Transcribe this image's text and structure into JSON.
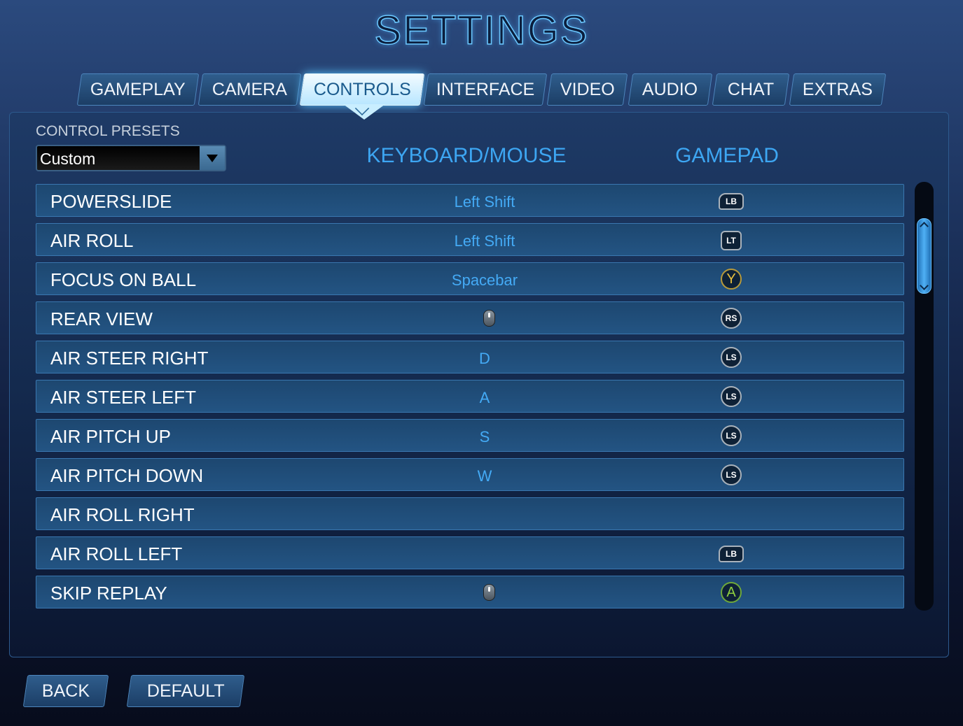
{
  "title": "SETTINGS",
  "tabs": [
    {
      "label": "GAMEPLAY"
    },
    {
      "label": "CAMERA"
    },
    {
      "label": "CONTROLS",
      "active": true
    },
    {
      "label": "INTERFACE"
    },
    {
      "label": "VIDEO"
    },
    {
      "label": "AUDIO"
    },
    {
      "label": "CHAT"
    },
    {
      "label": "EXTRAS"
    }
  ],
  "presets": {
    "label": "CONTROL PRESETS",
    "value": "Custom"
  },
  "columns": {
    "keyboard": "KEYBOARD/MOUSE",
    "gamepad": "GAMEPAD"
  },
  "bindings": [
    {
      "action": "POWERSLIDE",
      "keyboard": "Left Shift",
      "gamepad": "LB"
    },
    {
      "action": "AIR ROLL",
      "keyboard": "Left Shift",
      "gamepad": "LT"
    },
    {
      "action": "FOCUS ON BALL",
      "keyboard": "Spacebar",
      "gamepad": "Y"
    },
    {
      "action": "REAR VIEW",
      "keyboard_icon": "mouse-middle-icon",
      "gamepad": "RS"
    },
    {
      "action": "AIR STEER RIGHT",
      "keyboard": "D",
      "gamepad": "LS"
    },
    {
      "action": "AIR STEER LEFT",
      "keyboard": "A",
      "gamepad": "LS"
    },
    {
      "action": "AIR PITCH UP",
      "keyboard": "S",
      "gamepad": "LS"
    },
    {
      "action": "AIR PITCH DOWN",
      "keyboard": "W",
      "gamepad": "LS"
    },
    {
      "action": "AIR ROLL RIGHT"
    },
    {
      "action": "AIR ROLL LEFT",
      "gamepad": "LB"
    },
    {
      "action": "SKIP REPLAY",
      "keyboard_icon": "mouse-middle-icon",
      "gamepad": "A"
    }
  ],
  "footer": {
    "back": "BACK",
    "default": "DEFAULT"
  },
  "colors": {
    "accent": "#3da6f2",
    "active_tab": "#c9eeff"
  }
}
